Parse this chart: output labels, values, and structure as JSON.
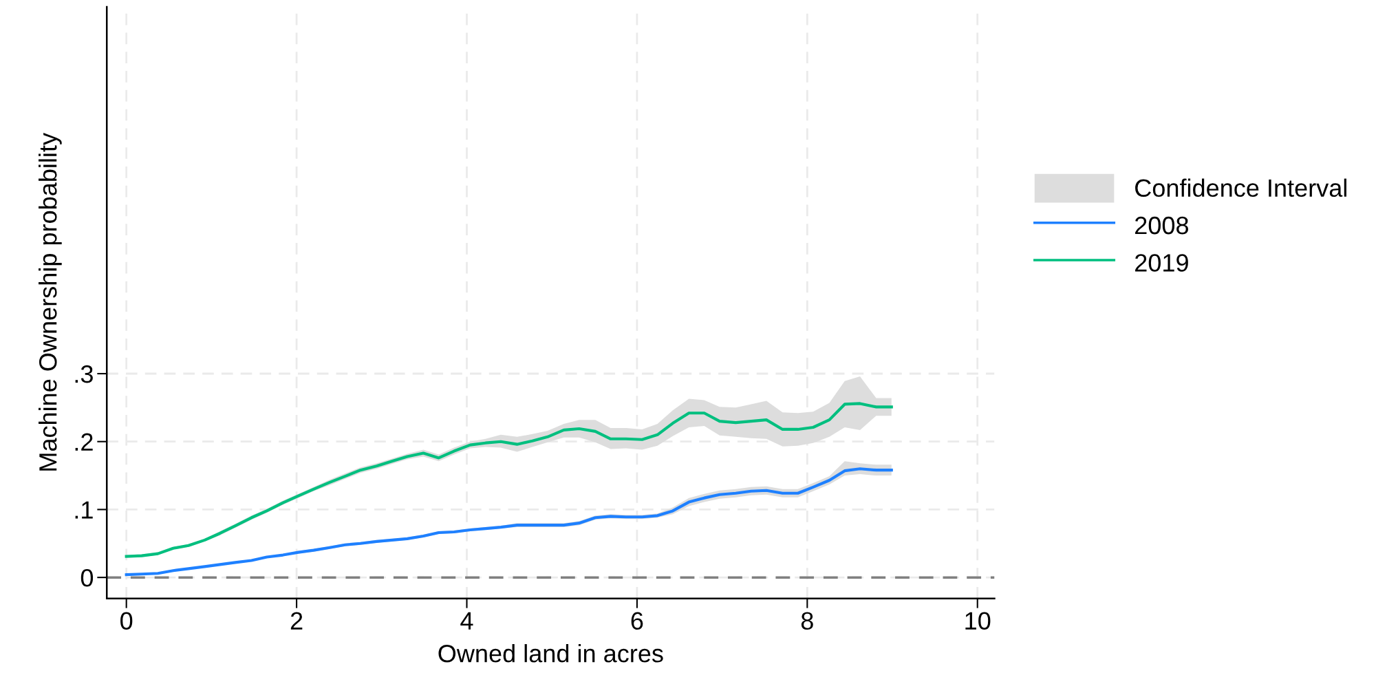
{
  "chart_data": {
    "type": "line",
    "xlabel": "Owned land in acres",
    "ylabel": "Machine Ownership probability",
    "x": [
      0,
      0.18,
      0.37,
      0.55,
      0.73,
      0.92,
      1.1,
      1.28,
      1.47,
      1.65,
      1.84,
      2.02,
      2.2,
      2.39,
      2.57,
      2.75,
      2.94,
      3.12,
      3.3,
      3.49,
      3.67,
      3.85,
      4.04,
      4.22,
      4.4,
      4.59,
      4.77,
      4.95,
      5.14,
      5.32,
      5.51,
      5.69,
      5.87,
      6.06,
      6.24,
      6.42,
      6.61,
      6.79,
      6.97,
      7.16,
      7.34,
      7.52,
      7.71,
      7.89,
      8.07,
      8.26,
      8.44,
      8.62,
      8.81,
      8.99
    ],
    "series": [
      {
        "name": "2008",
        "color": "#1e80ff",
        "values": [
          0.004,
          0.005,
          0.006,
          0.01,
          0.013,
          0.016,
          0.019,
          0.022,
          0.025,
          0.03,
          0.033,
          0.037,
          0.04,
          0.044,
          0.048,
          0.05,
          0.053,
          0.055,
          0.057,
          0.061,
          0.066,
          0.067,
          0.07,
          0.072,
          0.074,
          0.077,
          0.077,
          0.077,
          0.077,
          0.08,
          0.088,
          0.09,
          0.089,
          0.089,
          0.091,
          0.098,
          0.111,
          0.117,
          0.122,
          0.124,
          0.127,
          0.128,
          0.124,
          0.124,
          0.133,
          0.143,
          0.157,
          0.16,
          0.158,
          0.158
        ],
        "lower": [
          0.003,
          0.004,
          0.005,
          0.009,
          0.012,
          0.015,
          0.018,
          0.021,
          0.024,
          0.029,
          0.032,
          0.035,
          0.038,
          0.042,
          0.046,
          0.048,
          0.051,
          0.053,
          0.055,
          0.059,
          0.064,
          0.065,
          0.068,
          0.07,
          0.072,
          0.074,
          0.074,
          0.074,
          0.074,
          0.077,
          0.085,
          0.087,
          0.086,
          0.086,
          0.088,
          0.093,
          0.105,
          0.111,
          0.116,
          0.118,
          0.121,
          0.122,
          0.118,
          0.118,
          0.127,
          0.137,
          0.15,
          0.152,
          0.15,
          0.15
        ],
        "upper": [
          0.005,
          0.006,
          0.007,
          0.011,
          0.014,
          0.017,
          0.02,
          0.023,
          0.026,
          0.031,
          0.034,
          0.039,
          0.042,
          0.046,
          0.05,
          0.052,
          0.055,
          0.057,
          0.059,
          0.063,
          0.068,
          0.069,
          0.072,
          0.074,
          0.076,
          0.08,
          0.08,
          0.08,
          0.08,
          0.083,
          0.091,
          0.093,
          0.092,
          0.092,
          0.094,
          0.103,
          0.117,
          0.123,
          0.128,
          0.13,
          0.133,
          0.134,
          0.13,
          0.13,
          0.139,
          0.149,
          0.171,
          0.168,
          0.166,
          0.166
        ]
      },
      {
        "name": "2019",
        "color": "#00bf7f",
        "values": [
          0.031,
          0.032,
          0.035,
          0.043,
          0.047,
          0.055,
          0.065,
          0.076,
          0.088,
          0.098,
          0.11,
          0.12,
          0.13,
          0.14,
          0.149,
          0.158,
          0.164,
          0.171,
          0.178,
          0.183,
          0.176,
          0.186,
          0.195,
          0.198,
          0.2,
          0.196,
          0.201,
          0.207,
          0.217,
          0.219,
          0.215,
          0.204,
          0.204,
          0.203,
          0.21,
          0.227,
          0.242,
          0.242,
          0.23,
          0.228,
          0.23,
          0.232,
          0.218,
          0.218,
          0.221,
          0.232,
          0.255,
          0.256,
          0.251,
          0.251
        ],
        "lower": [
          0.029,
          0.03,
          0.033,
          0.041,
          0.045,
          0.053,
          0.062,
          0.073,
          0.085,
          0.095,
          0.107,
          0.117,
          0.127,
          0.136,
          0.145,
          0.154,
          0.16,
          0.167,
          0.174,
          0.178,
          0.171,
          0.181,
          0.19,
          0.192,
          0.191,
          0.185,
          0.192,
          0.199,
          0.206,
          0.206,
          0.199,
          0.189,
          0.19,
          0.188,
          0.194,
          0.208,
          0.221,
          0.223,
          0.209,
          0.207,
          0.205,
          0.204,
          0.193,
          0.194,
          0.198,
          0.207,
          0.221,
          0.217,
          0.238,
          0.238
        ],
        "upper": [
          0.033,
          0.034,
          0.037,
          0.045,
          0.049,
          0.057,
          0.068,
          0.079,
          0.091,
          0.101,
          0.113,
          0.123,
          0.133,
          0.144,
          0.153,
          0.162,
          0.168,
          0.175,
          0.182,
          0.188,
          0.181,
          0.191,
          0.2,
          0.204,
          0.21,
          0.207,
          0.211,
          0.216,
          0.226,
          0.232,
          0.232,
          0.22,
          0.22,
          0.218,
          0.226,
          0.246,
          0.263,
          0.261,
          0.251,
          0.25,
          0.255,
          0.26,
          0.243,
          0.242,
          0.244,
          0.257,
          0.289,
          0.296,
          0.264,
          0.264
        ]
      }
    ],
    "annotations": [
      "Confidence Interval"
    ],
    "xlim": [
      -0.23,
      10.2
    ],
    "xticks": [
      0,
      2,
      4,
      6,
      8,
      10
    ],
    "ylim": [
      -0.031,
      0.84
    ],
    "yticks": [
      0,
      {
        "value": 0.1,
        "label": ".1"
      },
      {
        "value": 0.2,
        "label": ".2"
      },
      {
        "value": 0.3,
        "label": ".3"
      }
    ],
    "ref_lines": [
      {
        "axis": "y",
        "value": 0,
        "color": "#808080",
        "line_style": "dashed"
      }
    ],
    "grid": true,
    "legend": "right",
    "line_style": "solid",
    "marker": "none"
  }
}
